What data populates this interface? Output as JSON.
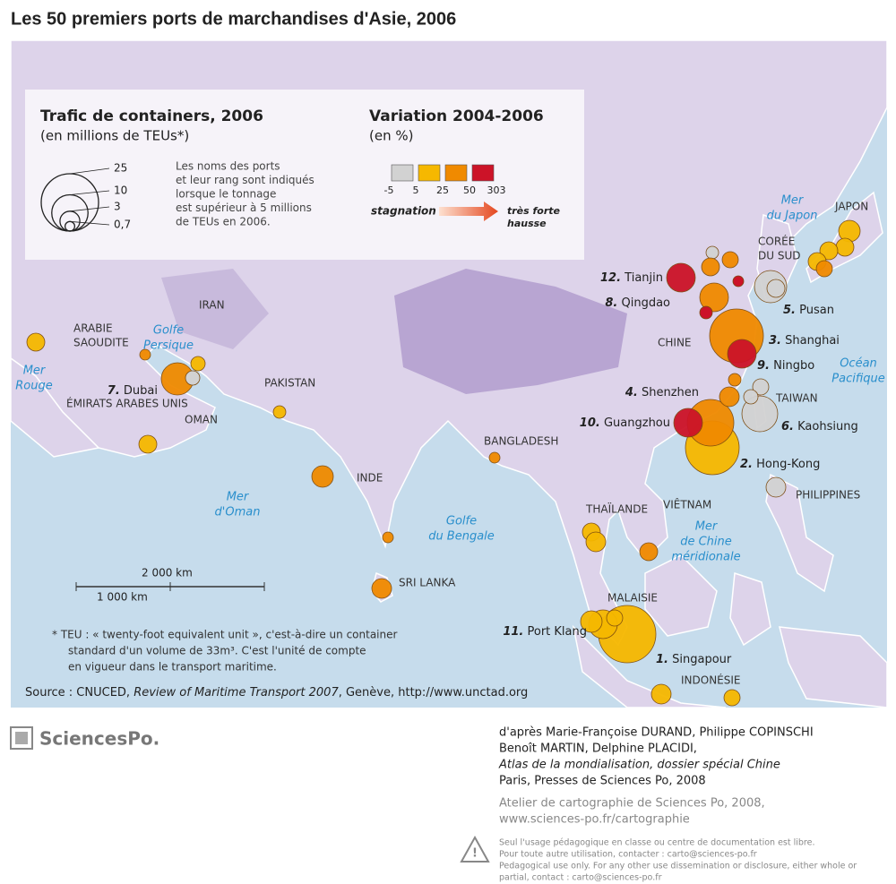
{
  "title": "Les 50 premiers ports de marchandises d'Asie, 2006",
  "legend_size": {
    "title": "Trafic de containers, 2006",
    "subtitle": "(en millions de TEUs*)",
    "values": [
      25,
      10,
      3,
      0.7
    ],
    "value_labels": [
      "25",
      "10",
      "3",
      "0,7"
    ],
    "note": [
      "Les noms des ports",
      "et leur rang sont indiqués",
      "lorsque le tonnage",
      "est supérieur à 5 millions",
      "de TEUs en 2006."
    ]
  },
  "legend_color": {
    "title": "Variation 2004-2006",
    "subtitle": "(en %)",
    "breaks": [
      -5,
      5,
      25,
      50,
      303
    ],
    "colors": [
      "#d2d2d2",
      "#f6b800",
      "#f08a00",
      "#cc1328"
    ],
    "low": "stagnation",
    "high": [
      "très forte",
      "hausse"
    ]
  },
  "ports": [
    {
      "rank": "1.",
      "name": "Singapour"
    },
    {
      "rank": "2.",
      "name": "Hong-Kong"
    },
    {
      "rank": "3.",
      "name": "Shanghai"
    },
    {
      "rank": "4.",
      "name": "Shenzhen"
    },
    {
      "rank": "5.",
      "name": "Pusan"
    },
    {
      "rank": "6.",
      "name": "Kaohsiung"
    },
    {
      "rank": "7.",
      "name": "Dubai"
    },
    {
      "rank": "8.",
      "name": "Qingdao"
    },
    {
      "rank": "9.",
      "name": "Ningbo"
    },
    {
      "rank": "10.",
      "name": "Guangzhou"
    },
    {
      "rank": "11.",
      "name": "Port Klang"
    },
    {
      "rank": "12.",
      "name": "Tianjin"
    }
  ],
  "countries": [
    "JAPON",
    "CORÉE",
    "DU SUD",
    "CHINE",
    "TAIWAN",
    "PHILIPPINES",
    "VIÊTNAM",
    "THAÏLANDE",
    "MALAISIE",
    "INDONÉSIE",
    "SRI LANKA",
    "INDE",
    "BANGLADESH",
    "PAKISTAN",
    "IRAN",
    "ARABIE",
    "SAOUDITE",
    "ÉMIRATS ARABES UNIS",
    "OMAN"
  ],
  "seas": [
    [
      "Mer",
      "du Japon"
    ],
    [
      "Océan",
      "Pacifique"
    ],
    [
      "Mer",
      "de Chine",
      "méridionale"
    ],
    [
      "Golfe",
      "du Bengale"
    ],
    [
      "Mer",
      "d'Oman"
    ],
    [
      "Golfe",
      "Persique"
    ],
    [
      "Mer",
      "Rouge"
    ]
  ],
  "scale": [
    "2 000 km",
    "1 000 km"
  ],
  "footnote": [
    "* TEU : « twenty-foot equivalent unit », c'est-à-dire un container",
    "standard d'un volume de 33m³. C'est l'unité de compte",
    "en vigueur dans le transport maritime."
  ],
  "source": [
    "Source : CNUCED, ",
    "Review of Maritime Transport 2007",
    ", Genève, http://www.unctad.org"
  ],
  "logo": "SciencesPo.",
  "credits": [
    "d'après Marie-Françoise DURAND, Philippe COPINSCHI",
    "Benoît MARTIN, Delphine PLACIDI,",
    "Atlas de la mondialisation, dossier spécial Chine",
    "Paris, Presses de Sciences Po, 2008"
  ],
  "atelier": [
    "Atelier de cartographie de Sciences Po, 2008,",
    "www.sciences-po.fr/cartographie"
  ],
  "disclaimer": [
    "Seul l'usage pédagogique en classe ou centre de documentation est libre.",
    "Pour toute autre utilisation, contacter : carto@sciences-po.fr",
    "Pedagogical use only. For any other use dissemination or disclosure, either whole or",
    "partial, contact : carto@sciences-po.fr"
  ]
}
